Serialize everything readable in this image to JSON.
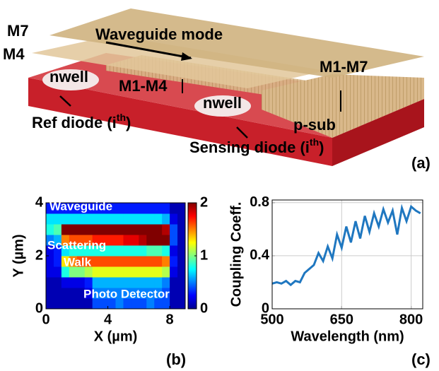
{
  "diagram": {
    "m7": "M7",
    "m4": "M4",
    "waveguide_mode": "Waveguide mode",
    "nwell_ref": "nwell",
    "nwell_sense": "nwell",
    "m1_m4": "M1-M4",
    "m1_m7": "M1-M7",
    "p_sub": "p-sub",
    "ref_diode": {
      "text": "Ref diode (i",
      "sup": "th",
      "end": ")"
    },
    "sensing_diode": {
      "text": "Sensing diode (i",
      "sup": "th",
      "end": ")"
    },
    "panel_label": "(a)"
  },
  "chart_data": [
    {
      "type": "heatmap",
      "panel_label": "(b)",
      "xlabel": "X (µm)",
      "ylabel": "Y (µm)",
      "xlim": [
        0,
        9
      ],
      "ylim": [
        0,
        4
      ],
      "xticks": [
        0,
        4,
        8
      ],
      "yticks": [
        0,
        2,
        4
      ],
      "colormap": "jet",
      "clim": [
        0,
        2
      ],
      "cticks": [
        0,
        1,
        2
      ],
      "annotations": [
        "Waveguide",
        "Scattering",
        "Walk",
        "Photo Detector"
      ],
      "xbins": [
        0,
        0.5,
        1,
        1.5,
        2,
        2.5,
        3,
        3.5,
        4,
        4.5,
        5,
        5.5,
        6,
        6.5,
        7,
        7.5,
        8,
        8.5,
        9
      ],
      "ybins": [
        0,
        0.4,
        0.8,
        1.2,
        1.6,
        2,
        2.4,
        2.8,
        3.2,
        3.6,
        4
      ],
      "z": [
        [
          0.1,
          0.1,
          0.1,
          0.1,
          0.1,
          0.1,
          0.4,
          0.4,
          0.4,
          0.5,
          0.4,
          0.4,
          0.4,
          0.5,
          0.4,
          0.4,
          0.1,
          0.1
        ],
        [
          0.1,
          0.1,
          0.1,
          0.1,
          0.1,
          0.2,
          0.5,
          0.5,
          0.5,
          0.5,
          0.5,
          0.5,
          0.5,
          0.5,
          0.5,
          0.4,
          0.1,
          0.1
        ],
        [
          0.1,
          0.1,
          0.2,
          0.2,
          0.2,
          0.3,
          0.6,
          0.6,
          0.6,
          0.6,
          0.6,
          0.6,
          0.6,
          0.6,
          0.6,
          0.5,
          0.1,
          0.1
        ],
        [
          0.2,
          0.2,
          0.8,
          1.0,
          1.0,
          1.1,
          1.2,
          1.2,
          1.2,
          1.2,
          1.2,
          1.2,
          1.2,
          1.2,
          1.2,
          1.1,
          0.2,
          0.1
        ],
        [
          0.2,
          0.3,
          1.3,
          1.5,
          1.6,
          1.6,
          1.6,
          1.6,
          1.6,
          1.6,
          1.6,
          1.6,
          1.6,
          1.6,
          1.6,
          1.5,
          0.3,
          0.1
        ],
        [
          0.2,
          0.3,
          0.7,
          0.8,
          0.8,
          0.8,
          0.8,
          0.8,
          0.8,
          0.8,
          0.8,
          0.8,
          0.8,
          0.9,
          0.9,
          0.8,
          0.2,
          0.1
        ],
        [
          0.5,
          0.6,
          1.5,
          1.6,
          1.6,
          1.6,
          1.7,
          1.7,
          1.7,
          1.7,
          1.8,
          1.8,
          1.9,
          2.0,
          2.0,
          2.0,
          0.4,
          0.1
        ],
        [
          0.8,
          0.9,
          2.0,
          2.0,
          2.0,
          2.0,
          2.0,
          2.0,
          2.0,
          2.0,
          2.0,
          2.0,
          2.0,
          2.0,
          2.0,
          1.9,
          0.4,
          0.1
        ],
        [
          0.7,
          0.7,
          0.7,
          0.7,
          0.7,
          0.7,
          0.7,
          0.7,
          0.7,
          0.7,
          0.7,
          0.7,
          0.7,
          0.7,
          0.7,
          0.6,
          0.2,
          0.1
        ],
        [
          0.3,
          0.3,
          0.3,
          0.3,
          0.3,
          0.3,
          0.3,
          0.3,
          0.3,
          0.3,
          0.3,
          0.3,
          0.3,
          0.3,
          0.3,
          0.3,
          0.1,
          0.1
        ]
      ]
    },
    {
      "type": "line",
      "panel_label": "(c)",
      "xlabel": "Wavelength (nm)",
      "ylabel": "Coupling Coeff.",
      "xlim": [
        500,
        825
      ],
      "ylim": [
        0,
        0.82
      ],
      "xticks": [
        500,
        650,
        800
      ],
      "yticks": [
        0,
        0.4,
        0.8
      ],
      "grid": true,
      "x": [
        500,
        510,
        520,
        530,
        540,
        550,
        560,
        570,
        580,
        590,
        600,
        610,
        620,
        630,
        640,
        650,
        660,
        670,
        680,
        690,
        700,
        710,
        720,
        730,
        740,
        750,
        760,
        770,
        780,
        790,
        800,
        810,
        820
      ],
      "series": [
        {
          "color": "#1f77c0",
          "values": [
            0.19,
            0.2,
            0.19,
            0.21,
            0.18,
            0.21,
            0.2,
            0.27,
            0.3,
            0.33,
            0.42,
            0.36,
            0.47,
            0.38,
            0.56,
            0.46,
            0.62,
            0.5,
            0.66,
            0.53,
            0.7,
            0.58,
            0.72,
            0.62,
            0.75,
            0.65,
            0.74,
            0.56,
            0.76,
            0.66,
            0.77,
            0.74,
            0.72
          ]
        }
      ]
    }
  ]
}
